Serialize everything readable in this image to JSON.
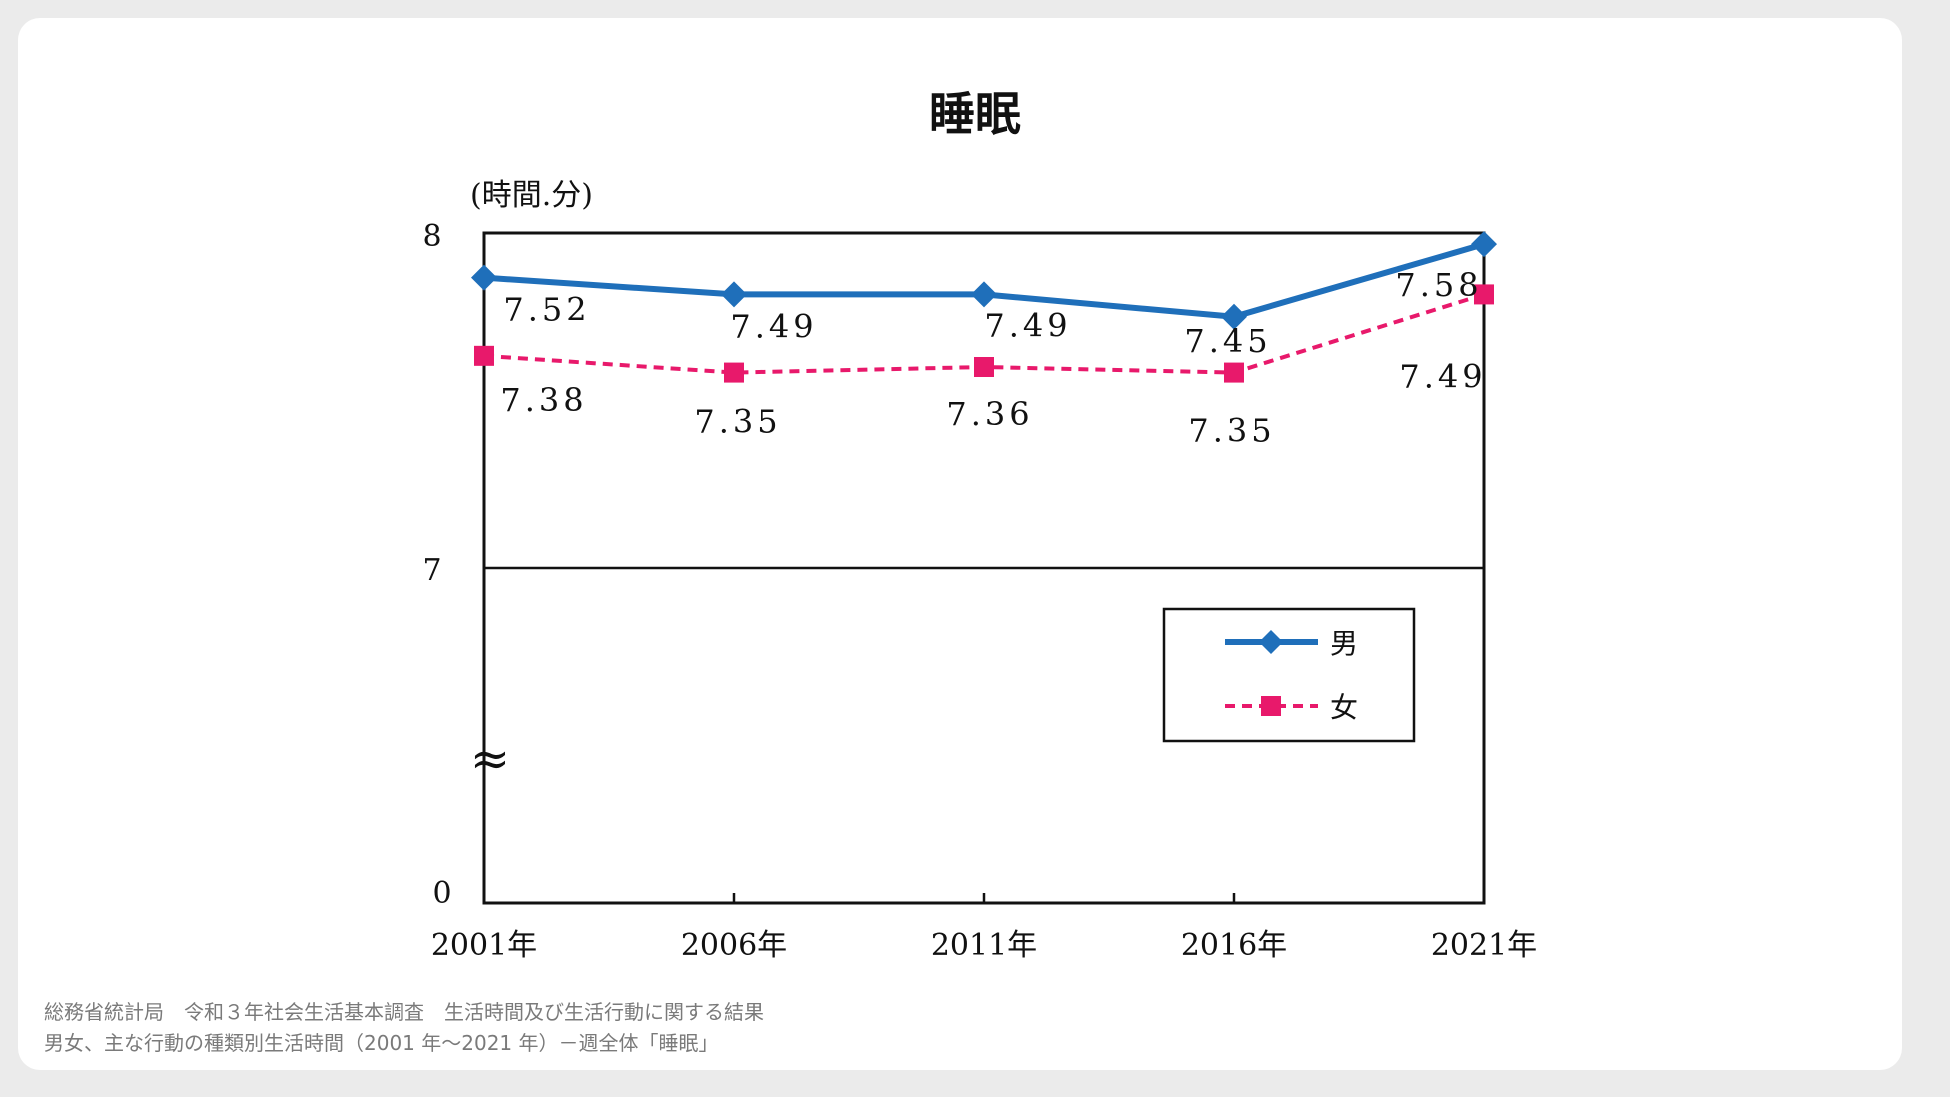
{
  "chart_data": {
    "type": "line",
    "title": "睡眠",
    "ylabel": "(時間.分)",
    "categories": [
      "2001年",
      "2006年",
      "2011年",
      "2016年",
      "2021年"
    ],
    "y_ticks": [
      "8",
      "7",
      "0"
    ],
    "axis_break_symbol": "≈",
    "series": [
      {
        "name": "男",
        "color": "#1f6fba",
        "marker": "diamond",
        "line_style": "solid",
        "values": [
          7.52,
          7.49,
          7.49,
          7.45,
          7.58
        ],
        "labels": [
          "7.52",
          "7.49",
          "7.49",
          "7.45",
          "7.58"
        ]
      },
      {
        "name": "女",
        "color": "#e8196b",
        "marker": "square",
        "line_style": "dashed",
        "values": [
          7.38,
          7.35,
          7.36,
          7.35,
          7.49
        ],
        "labels": [
          "7.38",
          "7.35",
          "7.36",
          "7.35",
          "7.49"
        ]
      }
    ],
    "legend_position": "lower-right"
  },
  "source": {
    "line1": "総務省統計局　令和３年社会生活基本調査　生活時間及び生活行動に関する結果",
    "line2": "男女、主な行動の種類別生活時間（2001 年～2021 年）－週全体「睡眠」"
  }
}
